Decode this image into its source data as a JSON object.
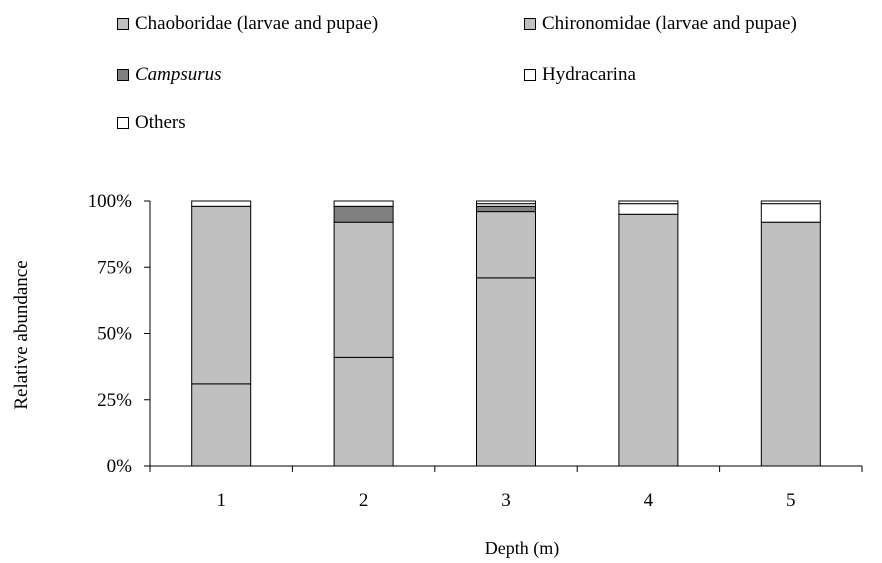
{
  "chart_data": {
    "type": "bar",
    "stacked": true,
    "xlabel": "Depth (m)",
    "ylabel": "Relative abundance",
    "ylim": [
      0,
      100
    ],
    "y_ticks": [
      "0%",
      "25%",
      "50%",
      "75%",
      "100%"
    ],
    "categories": [
      "1",
      "2",
      "3",
      "4",
      "5"
    ],
    "series": [
      {
        "name": "Chaoboridae (larvae and pupae)",
        "color": "#c0c0c0",
        "italic": false,
        "values": [
          31,
          41,
          71,
          0,
          0
        ]
      },
      {
        "name": "Chironomidae (larvae and pupae)",
        "color": "#c0c0c0",
        "italic": false,
        "values": [
          67,
          51,
          25,
          95,
          92
        ]
      },
      {
        "name": "Campsurus",
        "color": "#808080",
        "italic": true,
        "values": [
          0,
          6,
          2,
          0,
          0
        ]
      },
      {
        "name": "Hydracarina",
        "color": "#ffffff",
        "italic": false,
        "values": [
          0,
          0,
          1,
          4,
          7
        ]
      },
      {
        "name": "Others",
        "color": "#ffffff",
        "italic": false,
        "values": [
          2,
          2,
          1,
          1,
          1
        ]
      }
    ],
    "legend_position": "top",
    "grid": false
  }
}
